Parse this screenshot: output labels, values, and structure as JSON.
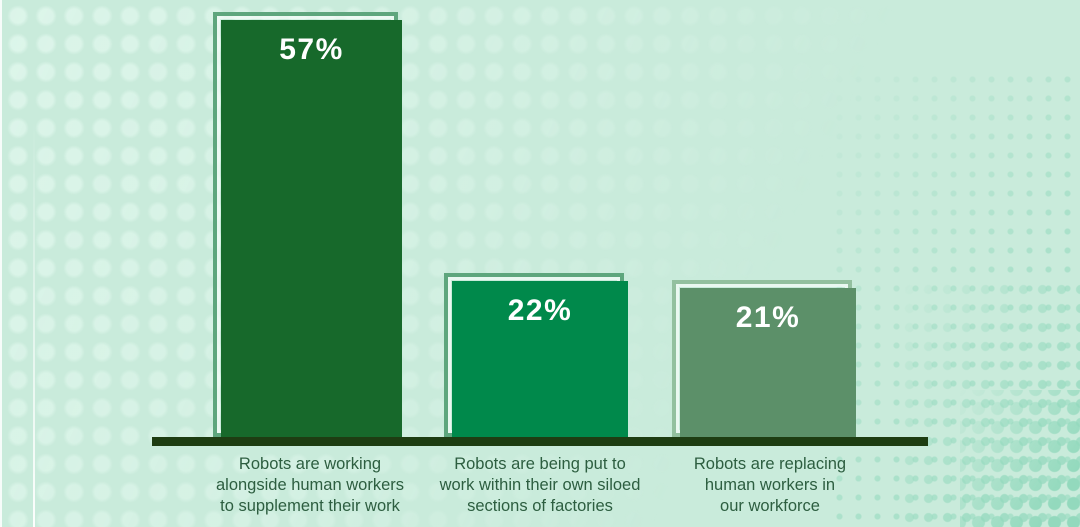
{
  "chart_data": {
    "type": "bar",
    "categories": [
      "Robots are working alongside human workers to supplement their work",
      "Robots are being put to work within their own siloed sections of factories",
      "Robots are replacing human workers in our workforce"
    ],
    "values": [
      57,
      22,
      21
    ],
    "value_labels": [
      "57%",
      "22%",
      "21%"
    ],
    "title": "",
    "xlabel": "",
    "ylabel": "",
    "ylim": [
      0,
      60
    ],
    "grid": false,
    "legend": false,
    "layout_hints": {
      "orientation": "vertical",
      "value_labels_position": "inside-top",
      "bar_style": "offset-outline-frame",
      "background_color": "#c9ebdb",
      "axis_line_color": "#1e3d12",
      "caption_text_color": "#2d5e40",
      "bar_fill_colors": [
        "#17692b",
        "#00894b",
        "#5c9069"
      ],
      "bar_frame_colors": [
        "#5ea67d",
        "#5ea67d",
        "#93c09f"
      ],
      "halftone_dot_color": "#9cdcc2",
      "soft_dot_color": "#def6eb",
      "value_label_color": "#ffffff"
    }
  },
  "bars": [
    {
      "value_label": "57%",
      "label_lines": [
        "Robots are working",
        "alongside human workers",
        "to supplement their work"
      ]
    },
    {
      "value_label": "22%",
      "label_lines": [
        "Robots are being put to",
        "work within their own siloed",
        "sections of factories"
      ]
    },
    {
      "value_label": "21%",
      "label_lines": [
        "Robots are replacing",
        "human workers in",
        "our workforce"
      ]
    }
  ]
}
